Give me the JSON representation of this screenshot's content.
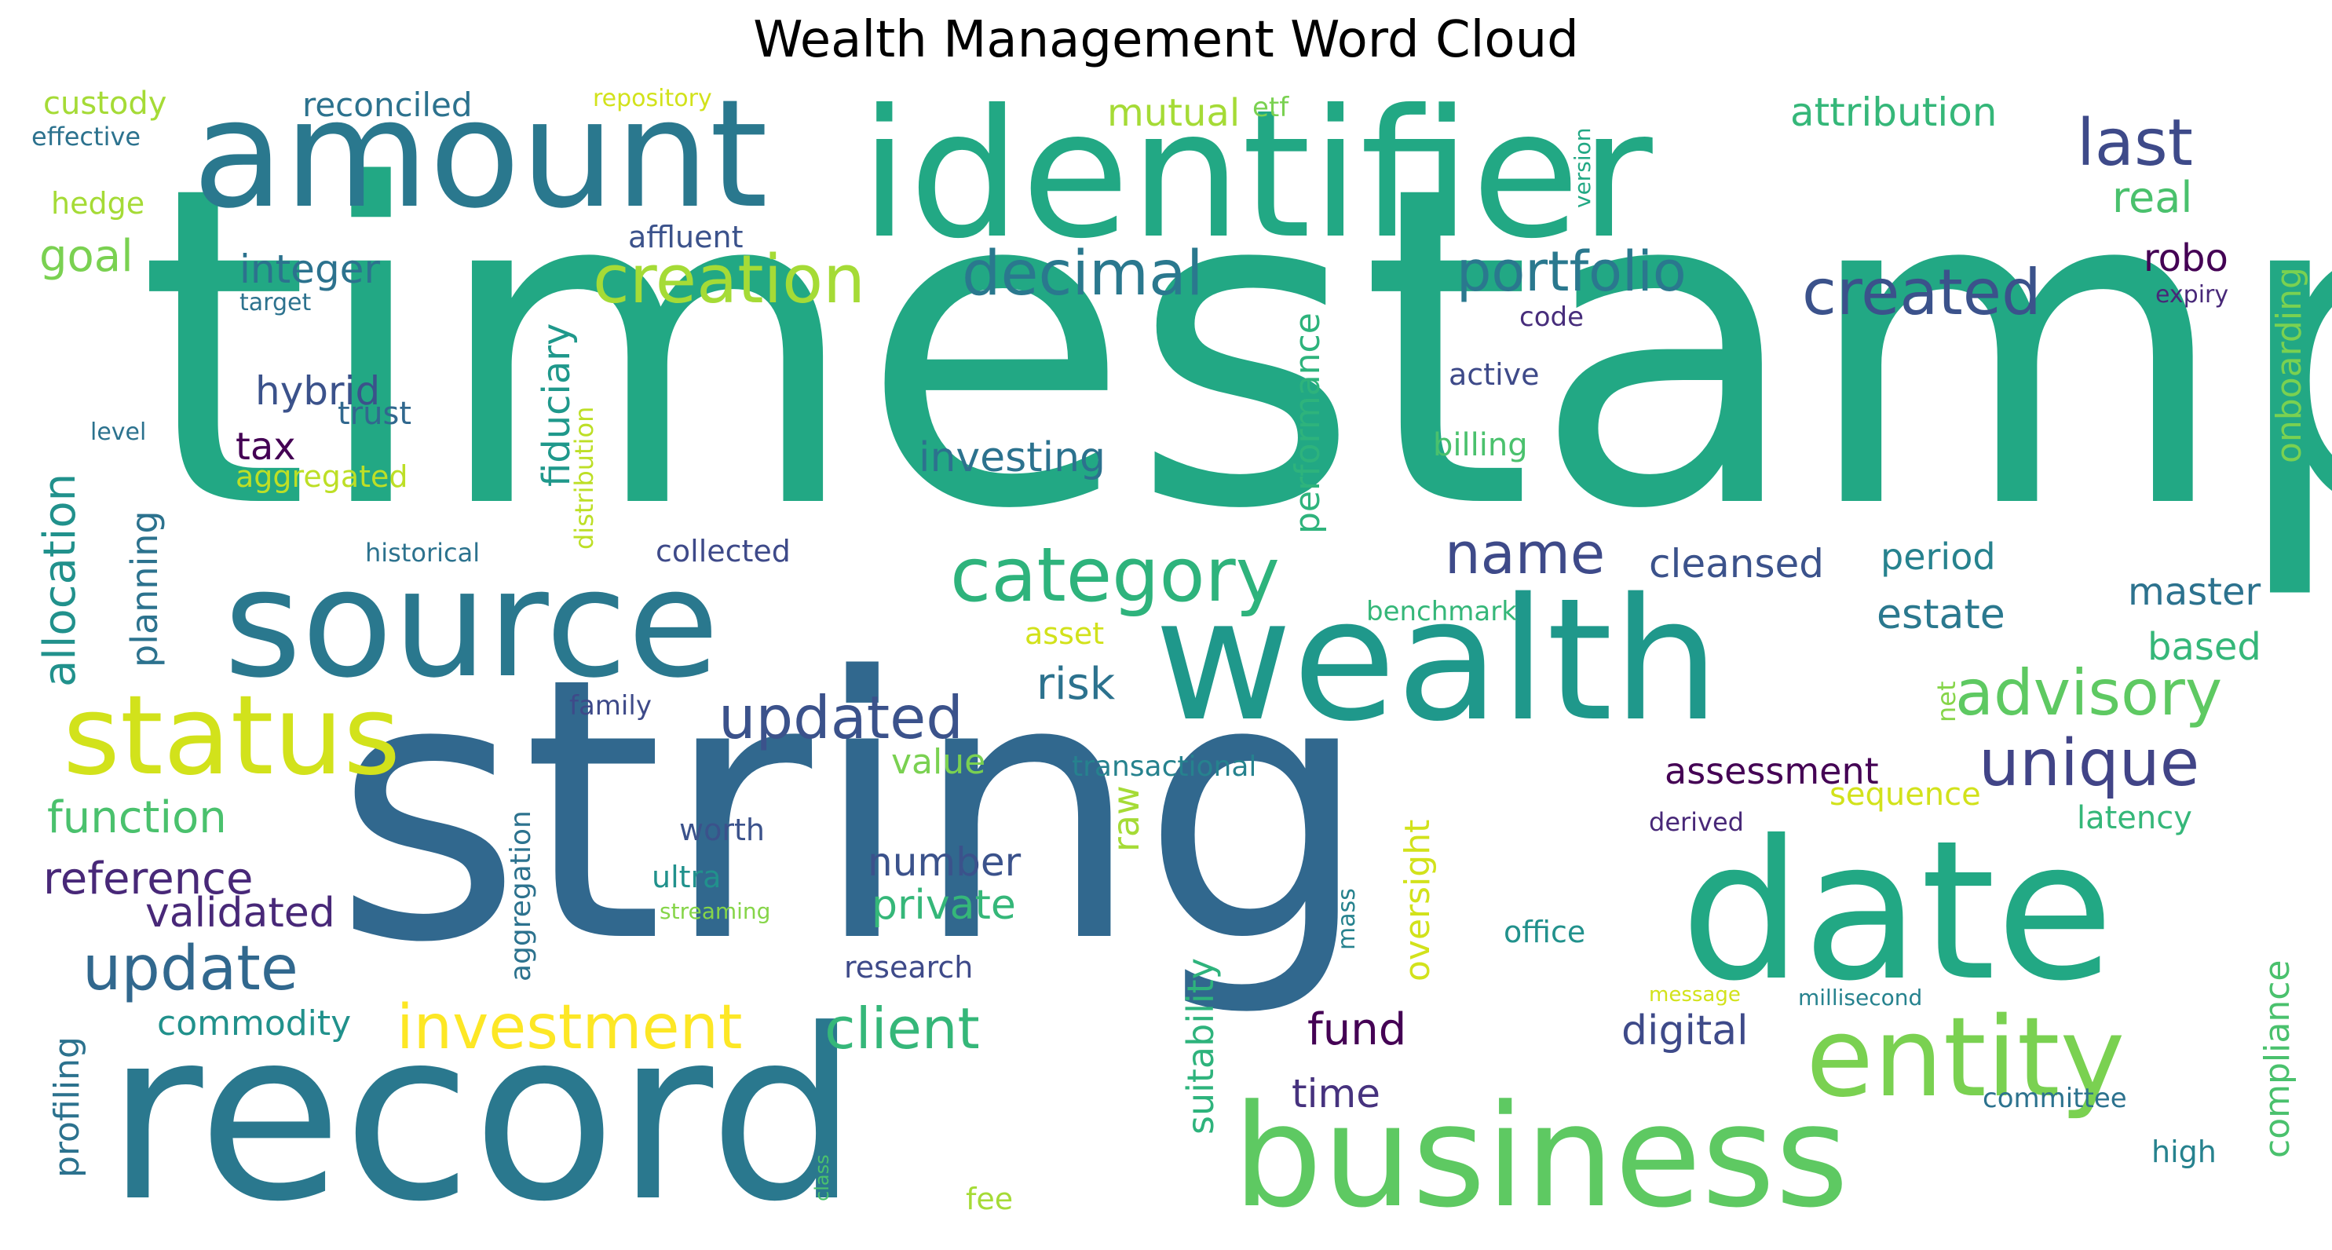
{
  "title": "Wealth Management Word Cloud",
  "words": [
    {
      "text": "timestamp",
      "color": "#22a884"
    },
    {
      "text": "string",
      "color": "#31688e"
    },
    {
      "text": "record",
      "color": "#2a788e"
    },
    {
      "text": "identifier",
      "color": "#22a884"
    },
    {
      "text": "amount",
      "color": "#2a788e"
    },
    {
      "text": "wealth",
      "color": "#1f988b"
    },
    {
      "text": "date",
      "color": "#22a884"
    },
    {
      "text": "business",
      "color": "#5ec962"
    },
    {
      "text": "source",
      "color": "#2a788e"
    },
    {
      "text": "status",
      "color": "#d2e21b"
    },
    {
      "text": "entity",
      "color": "#7ad151"
    },
    {
      "text": "category",
      "color": "#2eb37c"
    },
    {
      "text": "creation",
      "color": "#a5db36"
    },
    {
      "text": "decimal",
      "color": "#2a788e"
    },
    {
      "text": "portfolio",
      "color": "#2a788e"
    },
    {
      "text": "created",
      "color": "#3b528b"
    },
    {
      "text": "last",
      "color": "#3e4a89"
    },
    {
      "text": "advisory",
      "color": "#5ec962"
    },
    {
      "text": "unique",
      "color": "#414487"
    },
    {
      "text": "updated",
      "color": "#3b528b"
    },
    {
      "text": "investment",
      "color": "#fde725"
    },
    {
      "text": "client",
      "color": "#35b779"
    },
    {
      "text": "update",
      "color": "#31688e"
    },
    {
      "text": "name",
      "color": "#3e4a89"
    },
    {
      "text": "attribution",
      "color": "#35b779"
    },
    {
      "text": "function",
      "color": "#4ac16d"
    },
    {
      "text": "reference",
      "color": "#482878"
    },
    {
      "text": "mutual",
      "color": "#a5db36"
    },
    {
      "text": "real",
      "color": "#4ac16d"
    },
    {
      "text": "integer",
      "color": "#2c728e"
    },
    {
      "text": "goal",
      "color": "#7ad151"
    },
    {
      "text": "custody",
      "color": "#a5db36"
    },
    {
      "text": "reconciled",
      "color": "#2c728e"
    },
    {
      "text": "repository",
      "color": "#d2e21b"
    },
    {
      "text": "etf",
      "color": "#7ad151"
    },
    {
      "text": "effective",
      "color": "#2c728e"
    },
    {
      "text": "hedge",
      "color": "#a5db36"
    },
    {
      "text": "affluent",
      "color": "#3b528b"
    },
    {
      "text": "target",
      "color": "#2c728e"
    },
    {
      "text": "version",
      "color": "#22a884"
    },
    {
      "text": "onboarding",
      "color": "#7ad151"
    },
    {
      "text": "robo",
      "color": "#440154"
    },
    {
      "text": "expiry",
      "color": "#482878"
    },
    {
      "text": "code",
      "color": "#472d7b"
    },
    {
      "text": "fiduciary",
      "color": "#1f988b"
    },
    {
      "text": "distribution",
      "color": "#bddf26"
    },
    {
      "text": "performance",
      "color": "#2eb37c"
    },
    {
      "text": "hybrid",
      "color": "#3b528b"
    },
    {
      "text": "trust",
      "color": "#31688e"
    },
    {
      "text": "tax",
      "color": "#440154"
    },
    {
      "text": "level",
      "color": "#2c728e"
    },
    {
      "text": "aggregated",
      "color": "#bddf26"
    },
    {
      "text": "allocation",
      "color": "#21918c"
    },
    {
      "text": "planning",
      "color": "#2c728e"
    },
    {
      "text": "investing",
      "color": "#2c728e"
    },
    {
      "text": "active",
      "color": "#3e4a89"
    },
    {
      "text": "billing",
      "color": "#4ac16d"
    },
    {
      "text": "historical",
      "color": "#2c728e"
    },
    {
      "text": "collected",
      "color": "#3e4a89"
    },
    {
      "text": "cleansed",
      "color": "#3b528b"
    },
    {
      "text": "period",
      "color": "#26828e"
    },
    {
      "text": "master",
      "color": "#2c728e"
    },
    {
      "text": "benchmark",
      "color": "#35b779"
    },
    {
      "text": "estate",
      "color": "#2a788e"
    },
    {
      "text": "asset",
      "color": "#d2e21b"
    },
    {
      "text": "based",
      "color": "#35b779"
    },
    {
      "text": "risk",
      "color": "#2c728e"
    },
    {
      "text": "family",
      "color": "#3e4a89"
    },
    {
      "text": "net",
      "color": "#86d549"
    },
    {
      "text": "value",
      "color": "#7ad151"
    },
    {
      "text": "transactional",
      "color": "#26828e"
    },
    {
      "text": "assessment",
      "color": "#440154"
    },
    {
      "text": "sequence",
      "color": "#d2e21b"
    },
    {
      "text": "worth",
      "color": "#3b528b"
    },
    {
      "text": "number",
      "color": "#3b528b"
    },
    {
      "text": "private",
      "color": "#35b779"
    },
    {
      "text": "raw",
      "color": "#a5db36"
    },
    {
      "text": "suitability",
      "color": "#2eb37c"
    },
    {
      "text": "oversight",
      "color": "#d2e21b"
    },
    {
      "text": "derived",
      "color": "#482878"
    },
    {
      "text": "latency",
      "color": "#35b779"
    },
    {
      "text": "validated",
      "color": "#482878"
    },
    {
      "text": "aggregation",
      "color": "#2c728e"
    },
    {
      "text": "ultra",
      "color": "#21918c"
    },
    {
      "text": "streaming",
      "color": "#86d549"
    },
    {
      "text": "mass",
      "color": "#26828e"
    },
    {
      "text": "office",
      "color": "#21918c"
    },
    {
      "text": "research",
      "color": "#3e4a89"
    },
    {
      "text": "compliance",
      "color": "#4ac16d"
    },
    {
      "text": "message",
      "color": "#d2e21b"
    },
    {
      "text": "millisecond",
      "color": "#26828e"
    },
    {
      "text": "commodity",
      "color": "#21918c"
    },
    {
      "text": "fund",
      "color": "#440154"
    },
    {
      "text": "digital",
      "color": "#3e4a89"
    },
    {
      "text": "profiling",
      "color": "#2c728e"
    },
    {
      "text": "time",
      "color": "#46327e"
    },
    {
      "text": "committee",
      "color": "#2c728e"
    },
    {
      "text": "high",
      "color": "#26828e"
    },
    {
      "text": "class",
      "color": "#4ac16d"
    },
    {
      "text": "fee",
      "color": "#a5db36"
    }
  ]
}
